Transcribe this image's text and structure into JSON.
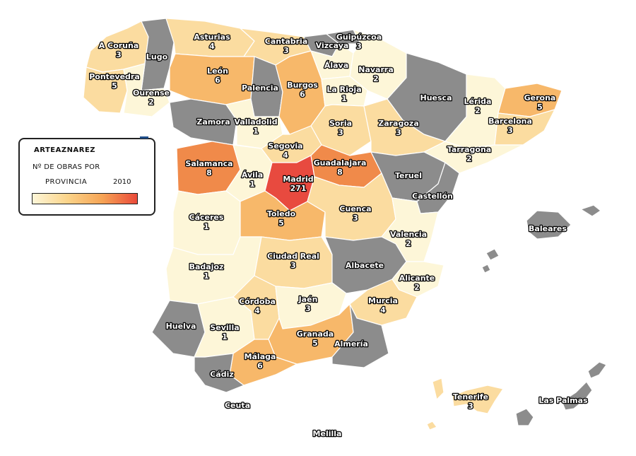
{
  "legend": {
    "title": "ARTEAZNAREZ",
    "subtitle_line1": "Nº DE OBRAS POR",
    "subtitle_line2": "PROVINCIA",
    "year": "2010",
    "scale_colors": [
      "#fdf6d8",
      "#fbd48a",
      "#f6a455",
      "#ea4a3a"
    ]
  },
  "colors": {
    "no_data": "#8c8c8c",
    "low": "#fdf6d8",
    "mid_low": "#fbdca0",
    "mid": "#f7b86a",
    "high": "#f08a4a",
    "highest": "#e84a3f"
  },
  "provinces": [
    {
      "name": "A Coruña",
      "value": "3"
    },
    {
      "name": "Lugo",
      "value": ""
    },
    {
      "name": "Asturias",
      "value": "4"
    },
    {
      "name": "Cantabria",
      "value": "3"
    },
    {
      "name": "Vizcaya",
      "value": ""
    },
    {
      "name": "Guipúzcoa",
      "value": "3"
    },
    {
      "name": "Pontevedra",
      "value": "5"
    },
    {
      "name": "Ourense",
      "value": "2"
    },
    {
      "name": "León",
      "value": "6"
    },
    {
      "name": "Palencia",
      "value": ""
    },
    {
      "name": "Burgos",
      "value": "6"
    },
    {
      "name": "Álava",
      "value": ""
    },
    {
      "name": "Navarra",
      "value": "2"
    },
    {
      "name": "La Rioja",
      "value": "1"
    },
    {
      "name": "Huesca",
      "value": ""
    },
    {
      "name": "Lérida",
      "value": "2"
    },
    {
      "name": "Gerona",
      "value": "5"
    },
    {
      "name": "Zamora",
      "value": ""
    },
    {
      "name": "Valladolid",
      "value": "1"
    },
    {
      "name": "Soria",
      "value": "3"
    },
    {
      "name": "Zaragoza",
      "value": "3"
    },
    {
      "name": "Barcelona",
      "value": "3"
    },
    {
      "name": "Tarragona",
      "value": "2"
    },
    {
      "name": "Segovia",
      "value": "4"
    },
    {
      "name": "Salamanca",
      "value": "8"
    },
    {
      "name": "Ávila",
      "value": "1"
    },
    {
      "name": "Madrid",
      "value": "271"
    },
    {
      "name": "Guadalajara",
      "value": "8"
    },
    {
      "name": "Teruel",
      "value": ""
    },
    {
      "name": "Castellón",
      "value": ""
    },
    {
      "name": "Cáceres",
      "value": "1"
    },
    {
      "name": "Toledo",
      "value": "5"
    },
    {
      "name": "Cuenca",
      "value": "3"
    },
    {
      "name": "Valencia",
      "value": "2"
    },
    {
      "name": "Baleares",
      "value": ""
    },
    {
      "name": "Badajoz",
      "value": "1"
    },
    {
      "name": "Ciudad Real",
      "value": "3"
    },
    {
      "name": "Albacete",
      "value": ""
    },
    {
      "name": "Alicante",
      "value": "2"
    },
    {
      "name": "Córdoba",
      "value": "4"
    },
    {
      "name": "Jaén",
      "value": "3"
    },
    {
      "name": "Murcia",
      "value": "4"
    },
    {
      "name": "Huelva",
      "value": ""
    },
    {
      "name": "Sevilla",
      "value": "1"
    },
    {
      "name": "Granada",
      "value": "5"
    },
    {
      "name": "Almería",
      "value": ""
    },
    {
      "name": "Málaga",
      "value": "6"
    },
    {
      "name": "Cádiz",
      "value": ""
    },
    {
      "name": "Ceuta",
      "value": ""
    },
    {
      "name": "Melilla",
      "value": ""
    },
    {
      "name": "Tenerife",
      "value": "3"
    },
    {
      "name": "Las Palmas",
      "value": ""
    }
  ]
}
